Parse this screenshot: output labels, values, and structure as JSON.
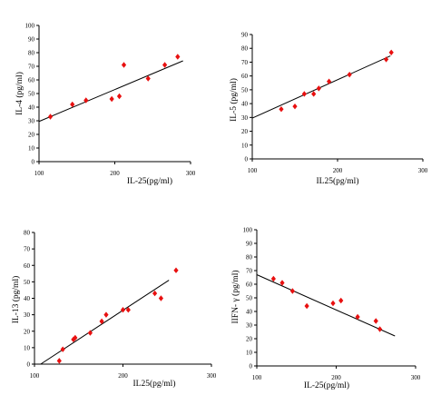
{
  "chart_data": [
    {
      "type": "scatter",
      "xlabel": "IL-25(pg/ml)",
      "ylabel": "IL-4  (pg/ml)",
      "xlim": [
        100,
        300
      ],
      "ylim": [
        0,
        100
      ],
      "xticks": [
        "100",
        "200",
        "300"
      ],
      "yticks": [
        "0",
        "10",
        "20",
        "30",
        "40",
        "50",
        "60",
        "70",
        "80",
        "90",
        "100"
      ],
      "points": [
        {
          "x": 115,
          "y": 33
        },
        {
          "x": 144,
          "y": 42
        },
        {
          "x": 162,
          "y": 45
        },
        {
          "x": 196,
          "y": 46
        },
        {
          "x": 206,
          "y": 48
        },
        {
          "x": 212,
          "y": 71
        },
        {
          "x": 244,
          "y": 61
        },
        {
          "x": 266,
          "y": 71
        },
        {
          "x": 283,
          "y": 77
        }
      ],
      "trend": {
        "x": [
          100,
          290
        ],
        "y": [
          29.5,
          74
        ]
      },
      "marker_color": "#e81010"
    },
    {
      "type": "scatter",
      "xlabel": "IL25(pg/ml)",
      "ylabel": "IL-5 (pg/ml)",
      "xlim": [
        100,
        300
      ],
      "ylim": [
        0,
        90
      ],
      "xticks": [
        "100",
        "200",
        "300"
      ],
      "yticks": [
        "0",
        "10",
        "20",
        "30",
        "40",
        "50",
        "60",
        "70",
        "80",
        "90"
      ],
      "points": [
        {
          "x": 134,
          "y": 36
        },
        {
          "x": 150,
          "y": 38
        },
        {
          "x": 161,
          "y": 47
        },
        {
          "x": 172,
          "y": 47
        },
        {
          "x": 178,
          "y": 51
        },
        {
          "x": 190,
          "y": 56
        },
        {
          "x": 214,
          "y": 61
        },
        {
          "x": 257,
          "y": 72
        },
        {
          "x": 263,
          "y": 77
        }
      ],
      "trend": {
        "x": [
          100,
          262
        ],
        "y": [
          29.5,
          74.5
        ]
      },
      "marker_color": "#e81010"
    },
    {
      "type": "scatter",
      "xlabel": "IL25(pg/ml)",
      "ylabel": "IL-13 (pg/ml)",
      "xlim": [
        100,
        300
      ],
      "ylim": [
        0,
        80
      ],
      "xticks": [
        "100",
        "200",
        "300"
      ],
      "yticks": [
        "0",
        "10",
        "20",
        "30",
        "40",
        "50",
        "60",
        "70",
        "80"
      ],
      "points": [
        {
          "x": 128,
          "y": 2
        },
        {
          "x": 132,
          "y": 9
        },
        {
          "x": 144,
          "y": 15
        },
        {
          "x": 146,
          "y": 16
        },
        {
          "x": 163,
          "y": 19
        },
        {
          "x": 176,
          "y": 26
        },
        {
          "x": 181,
          "y": 30
        },
        {
          "x": 200,
          "y": 33
        },
        {
          "x": 206,
          "y": 33
        },
        {
          "x": 236,
          "y": 43
        },
        {
          "x": 243,
          "y": 40
        },
        {
          "x": 260,
          "y": 57
        }
      ],
      "trend": {
        "x": [
          107,
          252
        ],
        "y": [
          0,
          51
        ]
      },
      "marker_color": "#e81010"
    },
    {
      "type": "scatter",
      "xlabel": "IL-25(pg/ml)",
      "ylabel": "IIFN- γ (pg/ml)",
      "xlim": [
        100,
        300
      ],
      "ylim": [
        0,
        100
      ],
      "xticks": [
        "100",
        "200",
        "300"
      ],
      "yticks": [
        "0",
        "10",
        "20",
        "30",
        "40",
        "50",
        "60",
        "70",
        "80",
        "90",
        "100"
      ],
      "points": [
        {
          "x": 121,
          "y": 64
        },
        {
          "x": 132,
          "y": 61
        },
        {
          "x": 145,
          "y": 55
        },
        {
          "x": 163,
          "y": 44
        },
        {
          "x": 196,
          "y": 46
        },
        {
          "x": 206,
          "y": 48
        },
        {
          "x": 227,
          "y": 36
        },
        {
          "x": 250,
          "y": 33
        },
        {
          "x": 255,
          "y": 27
        }
      ],
      "trend": {
        "x": [
          100,
          274
        ],
        "y": [
          67,
          22
        ]
      },
      "marker_color": "#e81010"
    }
  ]
}
